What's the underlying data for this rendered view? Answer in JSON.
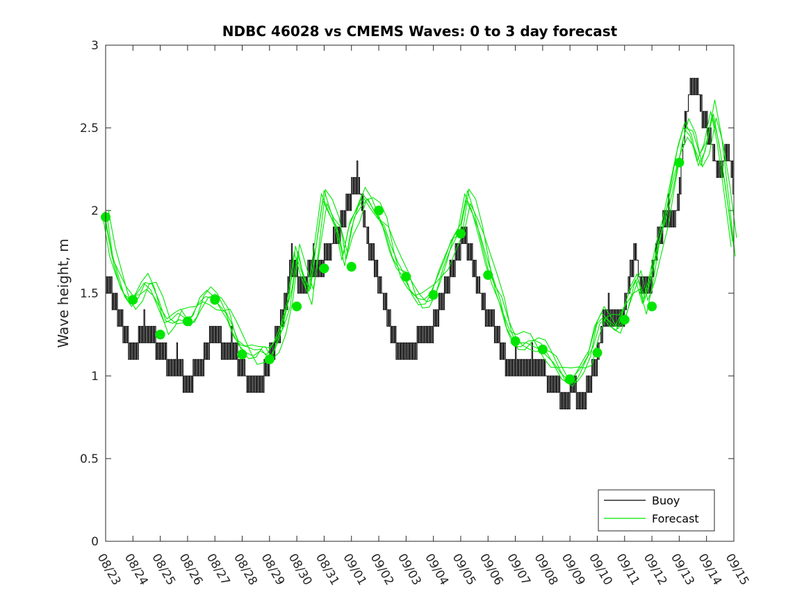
{
  "chart_data": {
    "type": "line",
    "title": "NDBC 46028 vs CMEMS Waves: 0 to 3 day forecast",
    "ylabel": "Wave height, m",
    "xlabel": "",
    "ylim": [
      0,
      3
    ],
    "yticks": [
      0,
      0.5,
      1,
      1.5,
      2,
      2.5,
      3
    ],
    "ytick_labels": [
      "0",
      "0.5",
      "1",
      "1.5",
      "2",
      "2.5",
      "3"
    ],
    "x_range_days": [
      0,
      23
    ],
    "x_tick_labels": [
      "08/23",
      "08/24",
      "08/25",
      "08/26",
      "08/27",
      "08/28",
      "08/29",
      "08/30",
      "08/31",
      "09/01",
      "09/02",
      "09/03",
      "09/04",
      "09/05",
      "09/06",
      "09/07",
      "09/08",
      "09/09",
      "09/10",
      "09/11",
      "09/12",
      "09/13",
      "09/14",
      "09/15"
    ],
    "legend_position": "bottom-right",
    "colors": {
      "buoy": "#000000",
      "forecast": "#00e600"
    },
    "legend": [
      {
        "name": "Buoy",
        "color": "#000000"
      },
      {
        "name": "Forecast",
        "color": "#00e600"
      }
    ],
    "buoy_series": {
      "name": "Buoy",
      "points": [
        [
          0,
          1.6
        ],
        [
          0.2,
          1.5
        ],
        [
          0.4,
          1.4
        ],
        [
          0.6,
          1.3
        ],
        [
          0.8,
          1.2
        ],
        [
          1.0,
          1.1
        ],
        [
          1.2,
          1.2
        ],
        [
          1.4,
          1.3
        ],
        [
          1.6,
          1.25
        ],
        [
          1.8,
          1.2
        ],
        [
          2.0,
          1.15
        ],
        [
          2.2,
          1.1
        ],
        [
          2.4,
          1.0
        ],
        [
          2.6,
          1.1
        ],
        [
          2.8,
          1.0
        ],
        [
          3.0,
          0.95
        ],
        [
          3.2,
          1.0
        ],
        [
          3.4,
          1.05
        ],
        [
          3.6,
          1.1
        ],
        [
          3.8,
          1.2
        ],
        [
          4.0,
          1.25
        ],
        [
          4.2,
          1.2
        ],
        [
          4.4,
          1.15
        ],
        [
          4.6,
          1.2
        ],
        [
          4.8,
          1.1
        ],
        [
          5.0,
          1.05
        ],
        [
          5.2,
          0.95
        ],
        [
          5.4,
          0.9
        ],
        [
          5.6,
          0.95
        ],
        [
          5.8,
          1.0
        ],
        [
          6.0,
          1.1
        ],
        [
          6.2,
          1.2
        ],
        [
          6.4,
          1.3
        ],
        [
          6.6,
          1.45
        ],
        [
          6.8,
          1.7
        ],
        [
          7.0,
          1.6
        ],
        [
          7.2,
          1.5
        ],
        [
          7.4,
          1.6
        ],
        [
          7.6,
          1.7
        ],
        [
          7.8,
          1.6
        ],
        [
          8.0,
          1.7
        ],
        [
          8.2,
          1.75
        ],
        [
          8.4,
          1.85
        ],
        [
          8.6,
          1.9
        ],
        [
          8.8,
          2.0
        ],
        [
          9.0,
          2.1
        ],
        [
          9.2,
          2.2
        ],
        [
          9.4,
          2.0
        ],
        [
          9.6,
          1.8
        ],
        [
          9.8,
          1.7
        ],
        [
          10.0,
          1.55
        ],
        [
          10.2,
          1.45
        ],
        [
          10.4,
          1.3
        ],
        [
          10.6,
          1.2
        ],
        [
          10.8,
          1.1
        ],
        [
          11.0,
          1.1
        ],
        [
          11.2,
          1.15
        ],
        [
          11.4,
          1.2
        ],
        [
          11.6,
          1.2
        ],
        [
          11.8,
          1.25
        ],
        [
          12.0,
          1.3
        ],
        [
          12.2,
          1.4
        ],
        [
          12.4,
          1.5
        ],
        [
          12.6,
          1.6
        ],
        [
          12.8,
          1.7
        ],
        [
          13.0,
          1.8
        ],
        [
          13.2,
          1.8
        ],
        [
          13.4,
          1.7
        ],
        [
          13.6,
          1.55
        ],
        [
          13.8,
          1.45
        ],
        [
          14.0,
          1.35
        ],
        [
          14.2,
          1.3
        ],
        [
          14.4,
          1.2
        ],
        [
          14.6,
          1.1
        ],
        [
          14.8,
          1.05
        ],
        [
          15.0,
          1.1
        ],
        [
          15.2,
          1.05
        ],
        [
          15.4,
          1.0
        ],
        [
          15.6,
          1.1
        ],
        [
          15.8,
          1.0
        ],
        [
          16.0,
          1.05
        ],
        [
          16.2,
          0.95
        ],
        [
          16.4,
          0.9
        ],
        [
          16.6,
          0.9
        ],
        [
          16.8,
          0.85
        ],
        [
          17.0,
          0.9
        ],
        [
          17.2,
          0.9
        ],
        [
          17.4,
          0.85
        ],
        [
          17.6,
          0.9
        ],
        [
          17.8,
          1.0
        ],
        [
          18.0,
          1.1
        ],
        [
          18.2,
          1.3
        ],
        [
          18.4,
          1.4
        ],
        [
          18.6,
          1.35
        ],
        [
          18.8,
          1.3
        ],
        [
          19.0,
          1.4
        ],
        [
          19.2,
          1.6
        ],
        [
          19.4,
          1.75
        ],
        [
          19.6,
          1.5
        ],
        [
          19.8,
          1.5
        ],
        [
          20.0,
          1.6
        ],
        [
          20.2,
          1.8
        ],
        [
          20.4,
          1.9
        ],
        [
          20.6,
          2.0
        ],
        [
          20.8,
          1.9
        ],
        [
          21.0,
          2.1
        ],
        [
          21.2,
          2.5
        ],
        [
          21.4,
          2.75
        ],
        [
          21.6,
          2.8
        ],
        [
          21.8,
          2.6
        ],
        [
          22.0,
          2.5
        ],
        [
          22.2,
          2.4
        ],
        [
          22.4,
          2.2
        ],
        [
          22.6,
          2.3
        ],
        [
          22.8,
          2.4
        ],
        [
          23.0,
          2.1
        ]
      ]
    },
    "forecast_series": [
      {
        "name": "Forecast",
        "points": [
          [
            0,
            1.96
          ],
          [
            0.25,
            1.72
          ],
          [
            0.5,
            1.6
          ],
          [
            0.75,
            1.5
          ],
          [
            1.0,
            1.46
          ],
          [
            1.25,
            1.5
          ],
          [
            1.5,
            1.56
          ],
          [
            1.75,
            1.52
          ],
          [
            2.0,
            1.42
          ],
          [
            2.25,
            1.32
          ],
          [
            2.5,
            1.34
          ],
          [
            2.75,
            1.38
          ],
          [
            3.0,
            1.35
          ],
          [
            3.25,
            1.36
          ],
          [
            3.5,
            1.44
          ],
          [
            3.75,
            1.48
          ],
          [
            4.0,
            1.47
          ],
          [
            4.25,
            1.43
          ],
          [
            4.5,
            1.38
          ],
          [
            4.75,
            1.26
          ],
          [
            5.0,
            1.18
          ],
          [
            5.25,
            1.14
          ],
          [
            5.5,
            1.12
          ],
          [
            5.75,
            1.15
          ],
          [
            6.0,
            1.13
          ],
          [
            6.25,
            1.2
          ],
          [
            6.5,
            1.3
          ],
          [
            6.75,
            1.45
          ],
          [
            7.0,
            1.75
          ],
          [
            7.25,
            1.6
          ],
          [
            7.5,
            1.5
          ],
          [
            7.75,
            1.8
          ],
          [
            8.0,
            2.1
          ],
          [
            8.25,
            2.0
          ],
          [
            8.5,
            1.9
          ],
          [
            8.75,
            1.7
          ],
          [
            9.0,
            1.9
          ],
          [
            9.25,
            2.0
          ],
          [
            9.5,
            2.1
          ],
          [
            9.75,
            2.05
          ],
          [
            10.0,
            1.98
          ],
          [
            10.25,
            1.9
          ],
          [
            10.5,
            1.75
          ],
          [
            10.75,
            1.65
          ],
          [
            11.0,
            1.6
          ],
          [
            11.25,
            1.52
          ],
          [
            11.5,
            1.47
          ],
          [
            11.75,
            1.46
          ],
          [
            12.0,
            1.5
          ],
          [
            12.25,
            1.6
          ],
          [
            12.5,
            1.7
          ],
          [
            12.75,
            1.82
          ],
          [
            13.0,
            1.88
          ],
          [
            13.25,
            2.1
          ],
          [
            13.5,
            2.0
          ],
          [
            13.75,
            1.85
          ],
          [
            14.0,
            1.68
          ],
          [
            14.25,
            1.55
          ],
          [
            14.5,
            1.45
          ],
          [
            14.75,
            1.3
          ],
          [
            15.0,
            1.22
          ],
          [
            15.25,
            1.2
          ],
          [
            15.5,
            1.2
          ],
          [
            15.75,
            1.18
          ],
          [
            16.0,
            1.16
          ],
          [
            16.25,
            1.12
          ],
          [
            16.5,
            1.08
          ],
          [
            16.75,
            1.02
          ],
          [
            17.0,
            0.98
          ],
          [
            17.25,
            1.0
          ],
          [
            17.5,
            1.05
          ],
          [
            17.75,
            1.12
          ],
          [
            18.0,
            1.3
          ],
          [
            18.25,
            1.38
          ],
          [
            18.5,
            1.34
          ],
          [
            18.75,
            1.3
          ],
          [
            19.0,
            1.38
          ],
          [
            19.25,
            1.5
          ],
          [
            19.5,
            1.58
          ],
          [
            19.75,
            1.44
          ],
          [
            20.0,
            1.6
          ],
          [
            20.25,
            1.8
          ],
          [
            20.5,
            1.95
          ],
          [
            20.75,
            2.15
          ],
          [
            21.0,
            2.35
          ],
          [
            21.25,
            2.5
          ],
          [
            21.5,
            2.45
          ],
          [
            21.75,
            2.3
          ],
          [
            22.0,
            2.4
          ],
          [
            22.25,
            2.6
          ],
          [
            22.5,
            2.4
          ],
          [
            22.75,
            2.1
          ],
          [
            23.0,
            1.78
          ]
        ]
      }
    ],
    "forecast_markers": [
      [
        0,
        1.96
      ],
      [
        1,
        1.46
      ],
      [
        2,
        1.25
      ],
      [
        3,
        1.33
      ],
      [
        4,
        1.46
      ],
      [
        5,
        1.13
      ],
      [
        6,
        1.1
      ],
      [
        7,
        1.42
      ],
      [
        8,
        1.65
      ],
      [
        9,
        1.66
      ],
      [
        10,
        2.0
      ],
      [
        11,
        1.6
      ],
      [
        12,
        1.49
      ],
      [
        13,
        1.86
      ],
      [
        14,
        1.61
      ],
      [
        15,
        1.21
      ],
      [
        16,
        1.16
      ],
      [
        17,
        0.98
      ],
      [
        18,
        1.14
      ],
      [
        19,
        1.34
      ],
      [
        20,
        1.42
      ],
      [
        21,
        2.29
      ]
    ]
  }
}
